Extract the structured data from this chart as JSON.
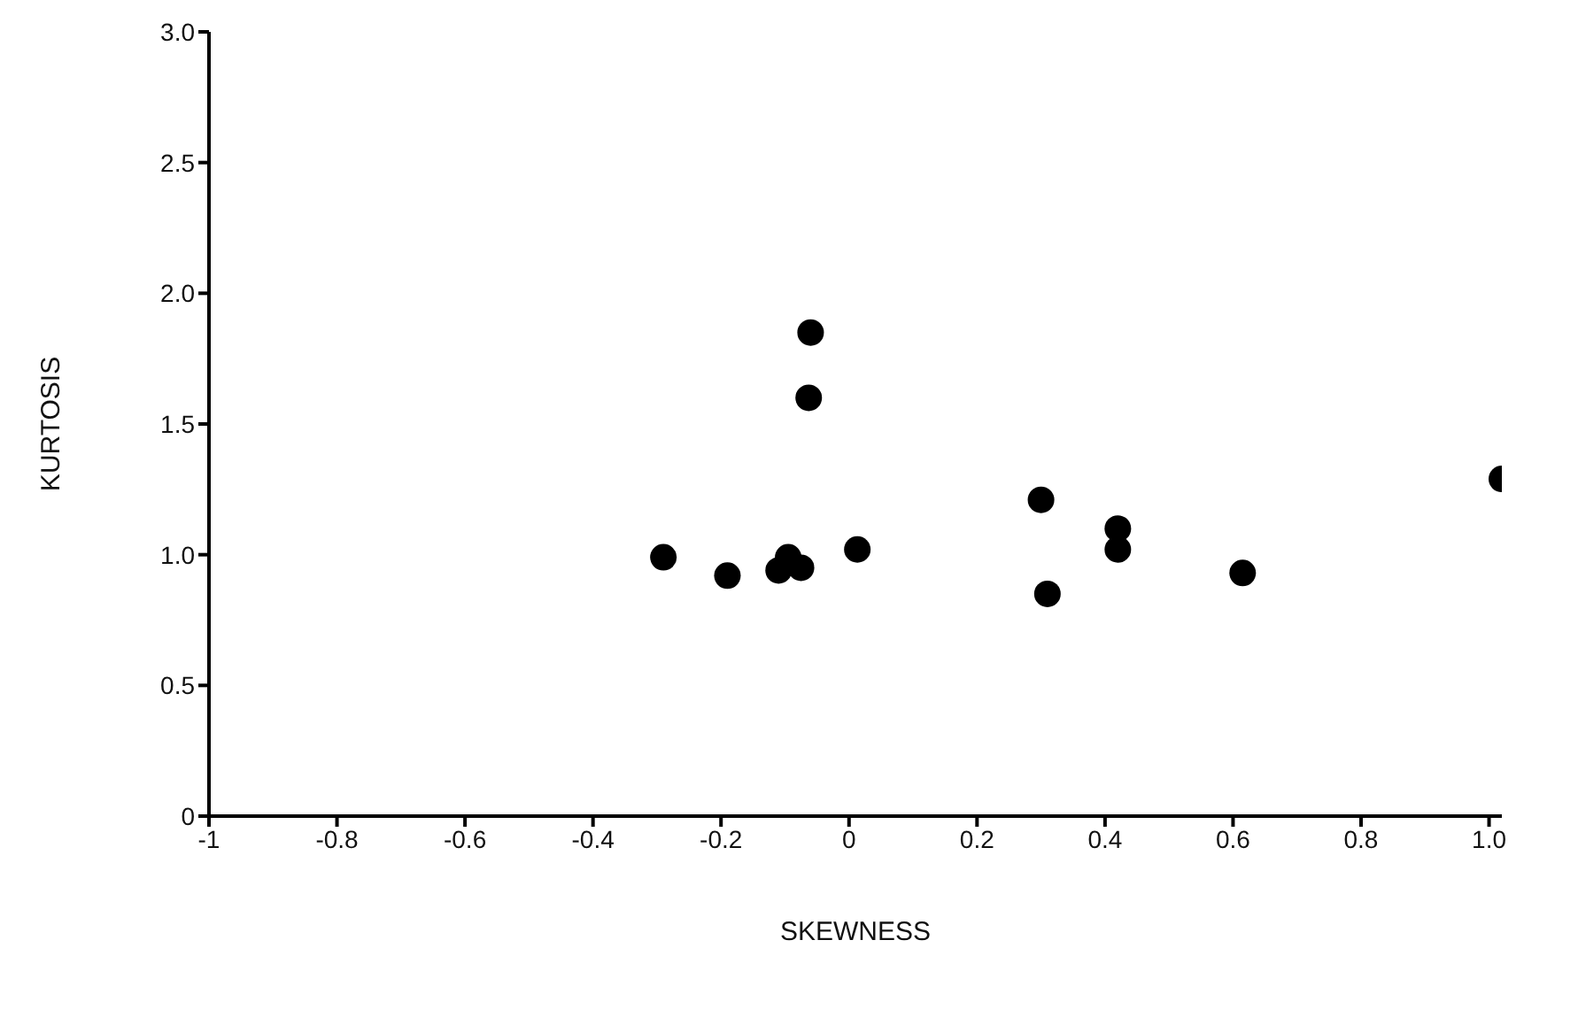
{
  "chart_data": {
    "type": "scatter",
    "xlabel": "SKEWNESS",
    "ylabel": "KURTOSIS",
    "x": [
      -0.29,
      -0.19,
      -0.11,
      -0.095,
      -0.075,
      -0.06,
      -0.063,
      0.013,
      0.3,
      0.31,
      0.42,
      0.42,
      0.615,
      1.02
    ],
    "values": [
      0.99,
      0.92,
      0.94,
      0.99,
      0.95,
      1.85,
      1.6,
      1.02,
      1.21,
      0.85,
      1.1,
      1.02,
      0.93,
      1.29
    ],
    "color": "#000000",
    "marker": "circle",
    "grid": false,
    "xlim": [
      -1,
      1.02
    ],
    "xticks": [
      -1,
      -0.8,
      -0.6,
      -0.4,
      -0.2,
      0,
      0.2,
      0.4,
      0.6,
      0.8,
      {
        "value": 1,
        "label": "1.0"
      }
    ],
    "ylim": [
      0,
      3
    ],
    "yticks": [
      0,
      0.5,
      {
        "value": 1,
        "label": "1.0"
      },
      1.5,
      {
        "value": 2,
        "label": "2.0"
      },
      2.5,
      {
        "value": 3,
        "label": "3.0"
      }
    ]
  }
}
